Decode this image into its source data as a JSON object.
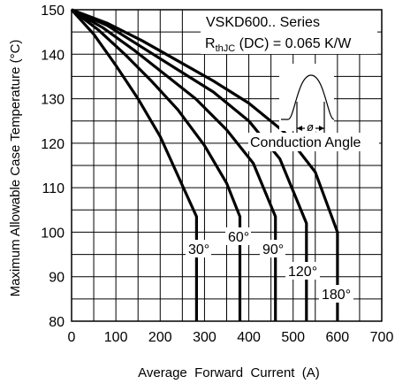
{
  "chart_data": {
    "type": "line",
    "title": "",
    "xlabel": "Average  Forward  Current  (A)",
    "ylabel": "Maximum Allowable Case Temperature (°C)",
    "xlim": [
      0,
      700
    ],
    "ylim": [
      80,
      150
    ],
    "xticks": [
      0,
      100,
      200,
      300,
      400,
      500,
      600,
      700
    ],
    "yticks": [
      80,
      90,
      100,
      110,
      120,
      130,
      140,
      150
    ],
    "grid": true,
    "legend": {
      "series_name": "VSKD600.. Series",
      "rth_prefix": "R",
      "rth_subscript": "thJC",
      "rth_rest": " (DC) = 0.065 K/W",
      "conduction_label": "Conduction  Angle",
      "phi_symbol": "ø"
    },
    "series": [
      {
        "label": "30°",
        "x": [
          0,
          50,
          100,
          150,
          200,
          250,
          282,
          282
        ],
        "y": [
          150,
          144.5,
          137.5,
          130,
          121.5,
          110.5,
          103.5,
          80
        ]
      },
      {
        "label": "60°",
        "x": [
          0,
          60,
          120,
          180,
          240,
          300,
          350,
          380,
          380
        ],
        "y": [
          150,
          145.5,
          140,
          134,
          127.5,
          119.5,
          111,
          103.5,
          80
        ]
      },
      {
        "label": "90°",
        "x": [
          0,
          70,
          140,
          210,
          280,
          350,
          410,
          460,
          460
        ],
        "y": [
          150,
          146,
          141,
          135.5,
          130,
          123,
          115.5,
          103.5,
          80
        ]
      },
      {
        "label": "120°",
        "x": [
          0,
          80,
          160,
          240,
          320,
          400,
          470,
          530,
          530
        ],
        "y": [
          150,
          146.5,
          141.5,
          136.5,
          131.5,
          125,
          116.5,
          102,
          80
        ]
      },
      {
        "label": "180°",
        "x": [
          0,
          80,
          160,
          240,
          320,
          400,
          480,
          550,
          600,
          600
        ],
        "y": [
          150,
          147,
          143,
          138.5,
          134,
          129,
          122.5,
          113.5,
          100,
          80
        ]
      }
    ]
  }
}
